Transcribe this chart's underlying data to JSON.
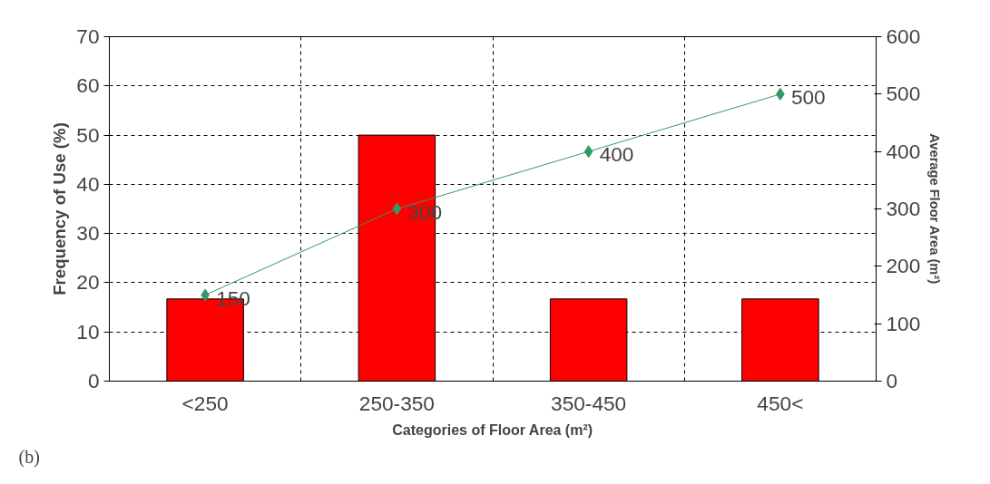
{
  "chart_data": {
    "type": "bar",
    "xlabel": "Categories of Floor Area (m²)",
    "ylabel": "Frequency of Use (%)",
    "y2label": "Average Floor Area (m²)",
    "categories": [
      "<250",
      "250-350",
      "350-450",
      "450<"
    ],
    "series": [
      {
        "color": "#ff0000",
        "values": [
          16.7,
          50,
          16.7,
          16.7
        ]
      },
      {
        "type": "line",
        "axis": "y2",
        "color": "#339966",
        "marker": "diamond",
        "values": [
          150,
          300,
          400,
          500
        ],
        "value_labels": [
          "150",
          "300",
          "400",
          "500"
        ]
      }
    ],
    "ylim": [
      0,
      70
    ],
    "yticks": [
      0,
      10,
      20,
      30,
      40,
      50,
      60,
      70
    ],
    "y2lim": [
      0,
      600
    ],
    "y2ticks": [
      0,
      100,
      200,
      300,
      400,
      500,
      600
    ],
    "grid": true,
    "annotations": [
      "(b)"
    ]
  }
}
